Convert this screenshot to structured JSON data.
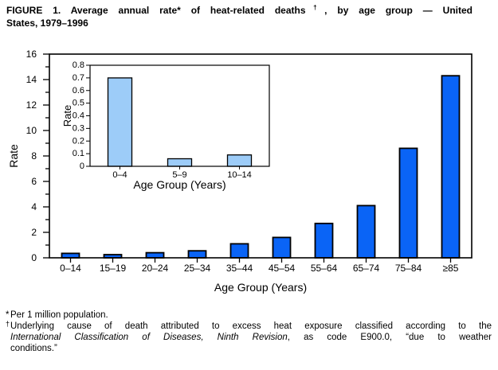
{
  "title": {
    "line1_pre_dagger": "FIGURE 1. Average annual rate* of heat-related deaths",
    "dagger": "†",
    "line1_post_dagger": ", by age group — United",
    "line2": "States, 1979–1996"
  },
  "footnotes": {
    "asterisk_marker": "*",
    "asterisk_note": "Per 1 million population.",
    "dagger_marker": "†",
    "dagger_note_line1": "Underlying cause of death attributed to excess heat exposure classified according to the",
    "dagger_note_line2_italic": "International Classification of Diseases, Ninth Revision",
    "dagger_note_line2_rest": ", as code E900.0, “due to weather",
    "dagger_note_line3": "conditions.”"
  },
  "chart_data": [
    {
      "id": "main",
      "type": "bar",
      "title": "Average annual rate of heat-related deaths by age group, United States, 1979–1996",
      "categories": [
        "0–14",
        "15–19",
        "20–24",
        "25–34",
        "35–44",
        "45–54",
        "55–64",
        "65–74",
        "75–84",
        "≥85"
      ],
      "values": [
        0.35,
        0.25,
        0.4,
        0.55,
        1.1,
        1.6,
        2.7,
        4.1,
        8.6,
        14.3
      ],
      "xlabel": "Age Group (Years)",
      "ylabel": "Rate",
      "ylim": [
        0,
        16
      ],
      "ytick_step": 2,
      "yminor_step": 1,
      "grid": false,
      "legend": "none",
      "bar_color": "#0a64f6",
      "bar_border_color": "#000000"
    },
    {
      "id": "inset",
      "type": "bar",
      "title": "Inset: rate for children by age group",
      "categories": [
        "0–4",
        "5–9",
        "10–14"
      ],
      "values": [
        0.7,
        0.06,
        0.09
      ],
      "xlabel": "Age Group (Years)",
      "ylabel": "Rate",
      "ylim": [
        0,
        0.8
      ],
      "ytick_step": 0.1,
      "grid": false,
      "legend": "none",
      "bar_color": "#9dccf8",
      "bar_border_color": "#000000"
    }
  ]
}
